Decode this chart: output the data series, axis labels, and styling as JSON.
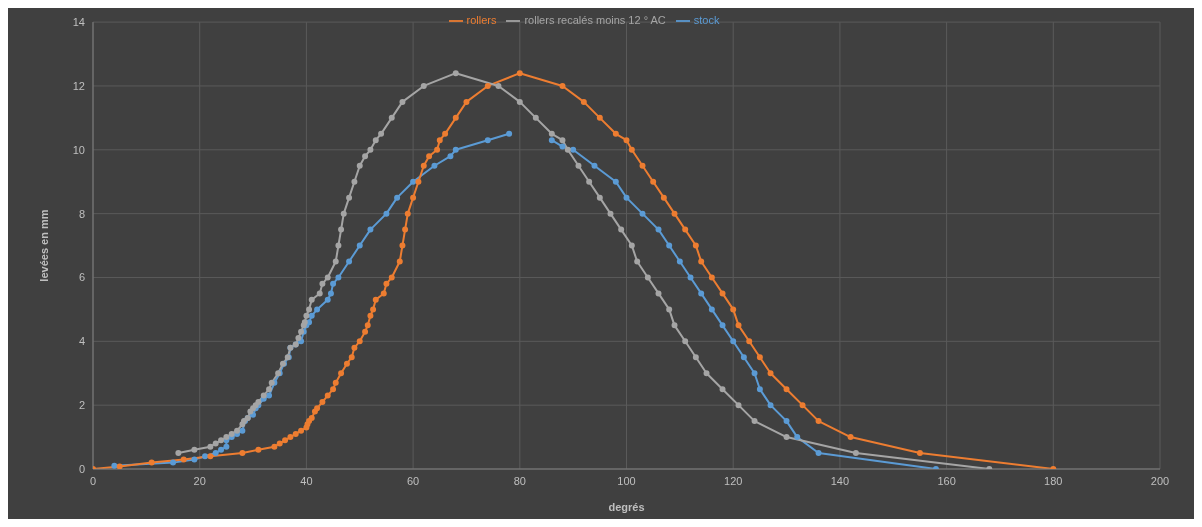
{
  "chart_data": {
    "type": "line",
    "xlabel": "degrés",
    "ylabel": "levées en mm",
    "xlim": [
      0,
      200
    ],
    "xticks": [
      0,
      20,
      40,
      60,
      80,
      100,
      120,
      140,
      160,
      180,
      200
    ],
    "ylim": [
      0,
      14
    ],
    "yticks": [
      0,
      2,
      4,
      6,
      8,
      10,
      12,
      14
    ],
    "grid": true,
    "legend": "top",
    "marker": "circle",
    "line_style": "solid",
    "series": [
      {
        "name": "stock",
        "color": "#5b9bd5",
        "x": [
          4,
          15,
          19,
          21,
          23,
          24,
          25,
          25,
          26,
          27,
          28,
          28.5,
          29,
          30,
          30.5,
          31,
          32,
          33,
          34,
          35,
          35.8,
          36.7,
          37,
          38,
          39,
          39.5,
          40,
          40.5,
          41,
          42,
          44,
          44.6,
          45,
          46,
          48,
          50,
          52,
          55,
          57,
          60,
          64,
          67,
          68,
          74,
          78,
          82,
          86,
          88,
          90,
          94,
          98,
          100,
          103,
          106,
          108,
          110,
          112,
          114,
          116,
          118,
          120,
          122,
          124,
          125,
          127,
          130,
          132,
          136,
          158
        ],
        "values": [
          0.1,
          0.2,
          0.3,
          0.4,
          0.5,
          0.6,
          0.7,
          0.9,
          1.0,
          1.1,
          1.2,
          1.5,
          1.6,
          1.7,
          1.9,
          2.0,
          2.2,
          2.3,
          2.7,
          3.0,
          3.3,
          3.5,
          3.8,
          3.9,
          4.0,
          4.3,
          4.5,
          4.6,
          4.8,
          5.0,
          5.3,
          5.5,
          5.8,
          6.0,
          6.5,
          7.0,
          7.5,
          8.0,
          8.5,
          9.0,
          9.5,
          9.8,
          10.0,
          10.3,
          10.5,
          null,
          10.3,
          10.1,
          10.0,
          9.5,
          9.0,
          8.5,
          8.0,
          7.5,
          7.0,
          6.5,
          6.0,
          5.5,
          5.0,
          4.5,
          4.0,
          3.5,
          3.0,
          2.5,
          2.0,
          1.5,
          1.0,
          0.5,
          0
        ]
      },
      {
        "name": "rollers",
        "color": "#ed7d31",
        "x": [
          0,
          5,
          11,
          17,
          22,
          28,
          31,
          34,
          35,
          36,
          37,
          38,
          39,
          40,
          40.2,
          40.5,
          41,
          41.6,
          42,
          43,
          44,
          45,
          45.5,
          46.5,
          47.6,
          48.5,
          49,
          50,
          51,
          51.5,
          52,
          52.5,
          53,
          54.5,
          55,
          56,
          57.5,
          58,
          58.5,
          59,
          60,
          61,
          62,
          63,
          64.5,
          65,
          66,
          68,
          70,
          74,
          80,
          88,
          92,
          95,
          98,
          100,
          101,
          103,
          105,
          107,
          109,
          111,
          113,
          114,
          116,
          118,
          120,
          121,
          123,
          125,
          127,
          130,
          133,
          136,
          142,
          155,
          180
        ],
        "values": [
          0,
          0.08,
          0.2,
          0.3,
          0.4,
          0.5,
          0.6,
          0.7,
          0.8,
          0.9,
          1.0,
          1.1,
          1.2,
          1.3,
          1.4,
          1.5,
          1.6,
          1.8,
          1.9,
          2.1,
          2.3,
          2.5,
          2.7,
          3.0,
          3.3,
          3.5,
          3.8,
          4.0,
          4.3,
          4.5,
          4.8,
          5.0,
          5.3,
          5.5,
          5.8,
          6.0,
          6.5,
          7.0,
          7.5,
          8.0,
          8.5,
          9.0,
          9.5,
          9.8,
          10.0,
          10.3,
          10.5,
          11.0,
          11.5,
          12.0,
          12.4,
          12.0,
          11.5,
          11.0,
          10.5,
          10.3,
          10.0,
          9.5,
          9.0,
          8.5,
          8.0,
          7.5,
          7.0,
          6.5,
          6.0,
          5.5,
          5.0,
          4.5,
          4.0,
          3.5,
          3.0,
          2.5,
          2.0,
          1.5,
          1.0,
          0.5,
          0
        ]
      },
      {
        "name": "rollers recalés moins 12 ° AC",
        "color": "#a5a5a5",
        "x": [
          16,
          19,
          22,
          23,
          24,
          25,
          26,
          27,
          28,
          28.3,
          29,
          29.5,
          30,
          30.5,
          31,
          32,
          33,
          33.5,
          34.7,
          35.6,
          36.5,
          37,
          38,
          38.5,
          39,
          39.5,
          39.7,
          40,
          40.5,
          41,
          42.5,
          43,
          44,
          45.5,
          46,
          46.5,
          47,
          48,
          49,
          50,
          51,
          52,
          53,
          54,
          56,
          58,
          62,
          68,
          76,
          80,
          83,
          86,
          88,
          89,
          91,
          93,
          95,
          97,
          99,
          101,
          102,
          104,
          106,
          108,
          109,
          111,
          113,
          115,
          118,
          121,
          124,
          130,
          143,
          168
        ],
        "values": [
          0.5,
          0.6,
          0.7,
          0.8,
          0.9,
          1.0,
          1.1,
          1.2,
          1.4,
          1.5,
          1.6,
          1.8,
          1.9,
          2.0,
          2.1,
          2.3,
          2.5,
          2.7,
          3.0,
          3.3,
          3.5,
          3.8,
          3.9,
          4.1,
          4.3,
          4.5,
          4.6,
          4.8,
          5.0,
          5.3,
          5.5,
          5.8,
          6.0,
          6.5,
          7.0,
          7.5,
          8.0,
          8.5,
          9.0,
          9.5,
          9.8,
          10.0,
          10.3,
          10.5,
          11.0,
          11.5,
          12.0,
          12.4,
          12.0,
          11.5,
          11.0,
          10.5,
          10.3,
          10.0,
          9.5,
          9.0,
          8.5,
          8.0,
          7.5,
          7.0,
          6.5,
          6.0,
          5.5,
          5.0,
          4.5,
          4.0,
          3.5,
          3.0,
          2.5,
          2.0,
          1.5,
          1.0,
          0.5,
          0
        ]
      }
    ]
  }
}
